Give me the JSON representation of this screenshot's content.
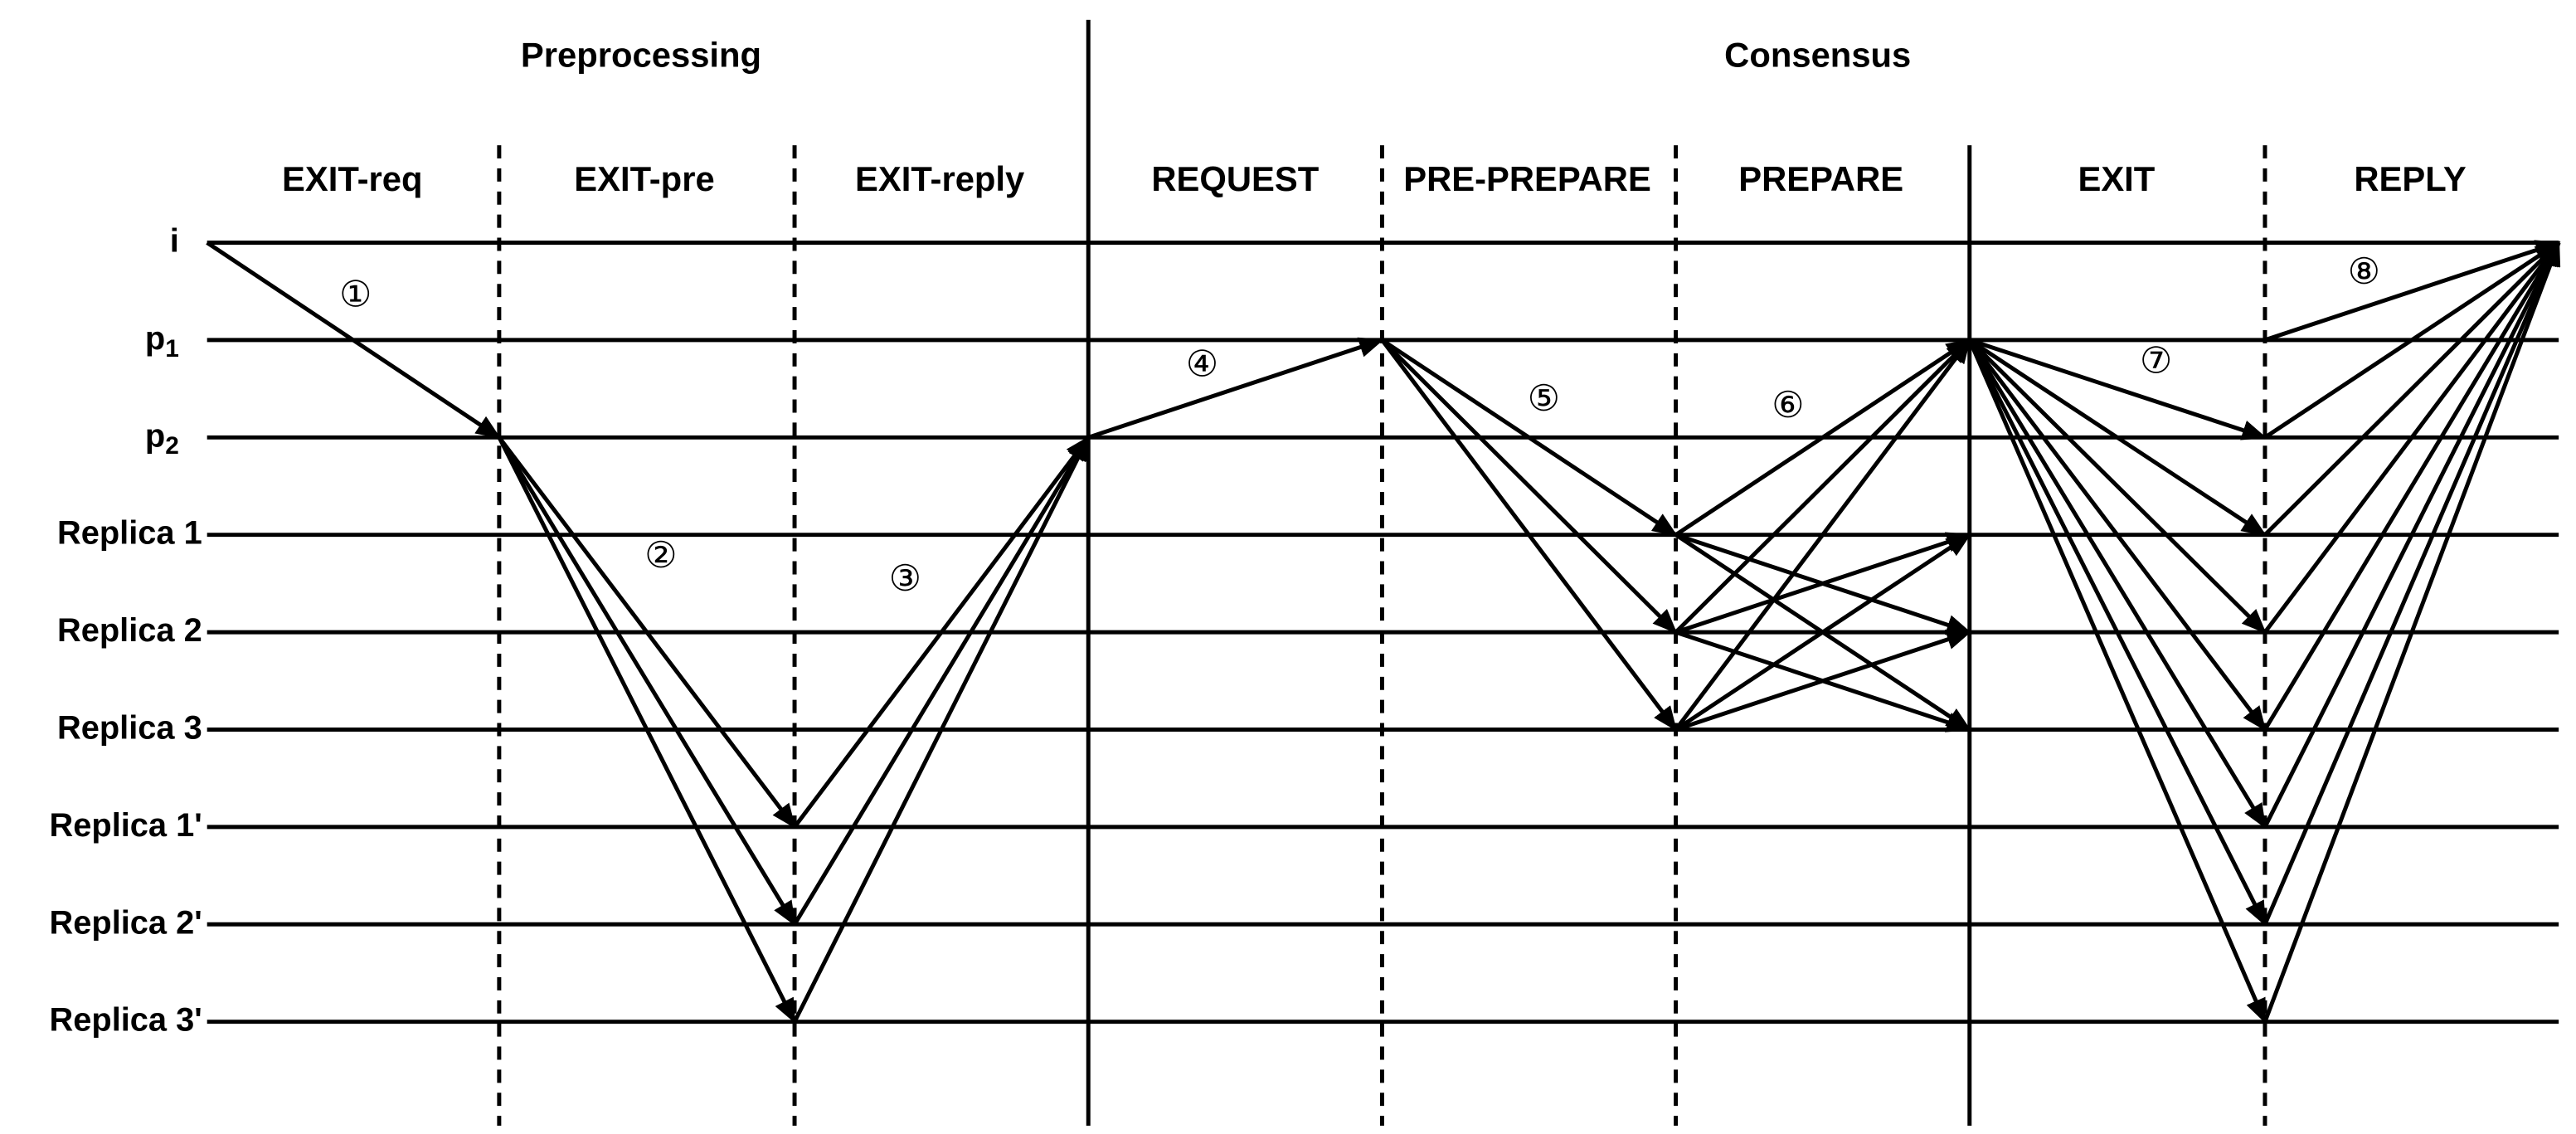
{
  "phases": [
    "Preprocessing",
    "Consensus"
  ],
  "subphases": [
    "EXIT-req",
    "EXIT-pre",
    "EXIT-reply",
    "REQUEST",
    "PRE-PREPARE",
    "PREPARE",
    "EXIT",
    "REPLY"
  ],
  "rows": [
    {
      "label": "i"
    },
    {
      "label": "p",
      "subscript": "1"
    },
    {
      "label": "p",
      "subscript": "2"
    },
    {
      "label": "Replica 1"
    },
    {
      "label": "Replica 2"
    },
    {
      "label": "Replica 3"
    },
    {
      "label": "Replica 1'"
    },
    {
      "label": "Replica 2'"
    },
    {
      "label": "Replica 3'"
    }
  ],
  "steps": [
    "①",
    "②",
    "③",
    "④",
    "⑤",
    "⑥",
    "⑦",
    "⑧"
  ]
}
